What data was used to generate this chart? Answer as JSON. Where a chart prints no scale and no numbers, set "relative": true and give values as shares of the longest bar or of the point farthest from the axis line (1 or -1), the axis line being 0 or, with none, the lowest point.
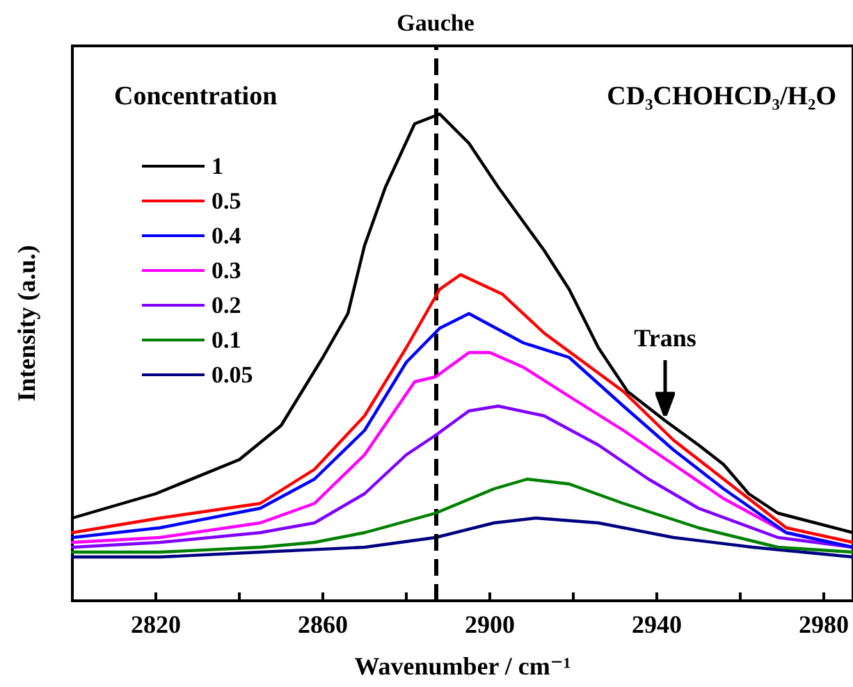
{
  "chart_data": {
    "type": "line",
    "title": "CD₃CHOHCD₃/H₂O",
    "xlabel": "Wavenumber / cm⁻¹",
    "ylabel": "Intensity (a.u.)",
    "legend_title": "Concentration",
    "relative": true,
    "xlim": [
      2800,
      2987
    ],
    "xticks": [
      2820,
      {
        "value": 2840,
        "label": null
      },
      2860,
      {
        "value": 2880,
        "label": null
      },
      2900,
      {
        "value": 2920,
        "label": null
      },
      2940,
      {
        "value": 2960,
        "label": null
      },
      2980
    ],
    "grid": false,
    "legend": "top left",
    "marker": "none",
    "line_style": "solid",
    "ref_lines": [
      {
        "axis": "x",
        "value": 2887,
        "label": "Gauche",
        "color": "#000000",
        "line_style": "dashed"
      }
    ],
    "annotations": [
      {
        "text": "Trans",
        "x": 2942,
        "y": 0.37
      }
    ],
    "series": [
      {
        "name": "1",
        "color": "#000000",
        "x": [
          2800,
          2820,
          2840,
          2850,
          2860,
          2866,
          2870,
          2875,
          2882,
          2888,
          2895,
          2902,
          2913,
          2919,
          2926,
          2933,
          2942,
          2950,
          2956,
          2962,
          2969,
          2987
        ],
        "values": [
          0.17,
          0.22,
          0.29,
          0.36,
          0.5,
          0.59,
          0.73,
          0.85,
          0.98,
          1,
          0.94,
          0.85,
          0.72,
          0.64,
          0.52,
          0.43,
          0.37,
          0.32,
          0.28,
          0.22,
          0.18,
          0.14
        ]
      },
      {
        "name": "0.5",
        "color": "#ff0000",
        "x": [
          2800,
          2821,
          2845,
          2858,
          2870,
          2880,
          2888,
          2893,
          2903,
          2913,
          2932,
          2944,
          2956,
          2971,
          2987
        ],
        "values": [
          0.14,
          0.17,
          0.2,
          0.27,
          0.38,
          0.52,
          0.64,
          0.67,
          0.63,
          0.55,
          0.43,
          0.33,
          0.25,
          0.15,
          0.12
        ]
      },
      {
        "name": "0.4",
        "color": "#0000ff",
        "x": [
          2800,
          2821,
          2845,
          2858,
          2870,
          2880,
          2888,
          2895,
          2908,
          2919,
          2932,
          2944,
          2956,
          2971,
          2987
        ],
        "values": [
          0.13,
          0.15,
          0.19,
          0.25,
          0.35,
          0.49,
          0.56,
          0.59,
          0.53,
          0.5,
          0.4,
          0.31,
          0.23,
          0.14,
          0.11
        ]
      },
      {
        "name": "0.3",
        "color": "#ff00ff",
        "x": [
          2800,
          2821,
          2845,
          2858,
          2870,
          2882,
          2887,
          2895,
          2900,
          2908,
          2919,
          2932,
          2944,
          2956,
          2971,
          2987
        ],
        "values": [
          0.12,
          0.13,
          0.16,
          0.2,
          0.3,
          0.45,
          0.46,
          0.51,
          0.51,
          0.48,
          0.42,
          0.35,
          0.28,
          0.21,
          0.14,
          0.11
        ]
      },
      {
        "name": "0.2",
        "color": "#8000ff",
        "x": [
          2800,
          2821,
          2845,
          2858,
          2870,
          2880,
          2887,
          2895,
          2902,
          2913,
          2926,
          2938,
          2950,
          2969,
          2987
        ],
        "values": [
          0.11,
          0.12,
          0.14,
          0.16,
          0.22,
          0.3,
          0.34,
          0.39,
          0.4,
          0.38,
          0.32,
          0.25,
          0.19,
          0.13,
          0.11
        ]
      },
      {
        "name": "0.1",
        "color": "#008000",
        "x": [
          2800,
          2821,
          2845,
          2858,
          2870,
          2887,
          2901,
          2909,
          2919,
          2932,
          2950,
          2969,
          2987
        ],
        "values": [
          0.1,
          0.1,
          0.11,
          0.12,
          0.14,
          0.18,
          0.23,
          0.25,
          0.24,
          0.2,
          0.15,
          0.11,
          0.1
        ]
      },
      {
        "name": "0.05",
        "color": "#000080",
        "x": [
          2800,
          2821,
          2845,
          2870,
          2887,
          2901,
          2911,
          2926,
          2944,
          2963,
          2987
        ],
        "values": [
          0.09,
          0.09,
          0.1,
          0.11,
          0.13,
          0.16,
          0.17,
          0.16,
          0.13,
          0.11,
          0.09
        ]
      }
    ]
  }
}
